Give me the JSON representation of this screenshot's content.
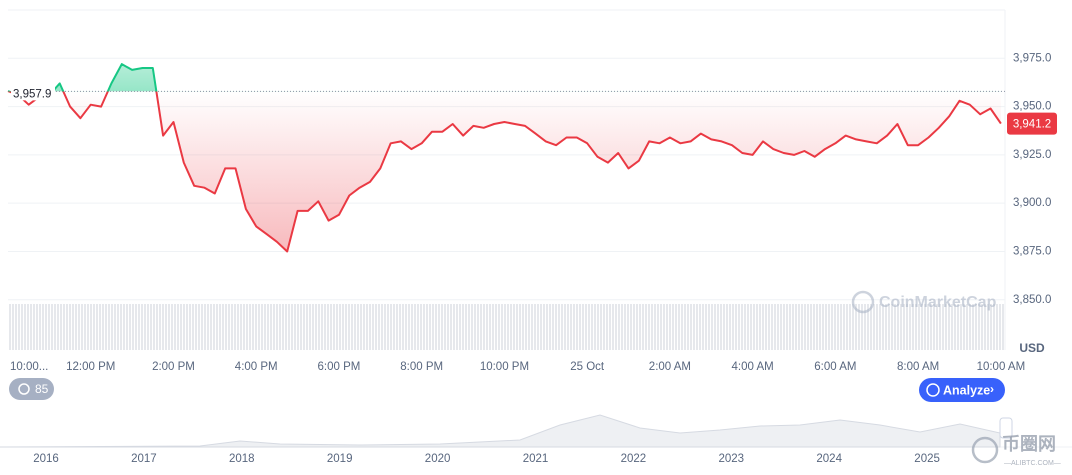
{
  "chart_data": {
    "type": "line",
    "x": [
      0,
      0.25,
      0.5,
      0.75,
      1,
      1.25,
      1.5,
      1.75,
      2,
      2.25,
      2.5,
      2.75,
      3,
      3.25,
      3.5,
      3.75,
      4,
      4.25,
      4.5,
      4.75,
      5,
      5.25,
      5.5,
      5.75,
      6,
      6.25,
      6.5,
      6.75,
      7,
      7.25,
      7.5,
      7.75,
      8,
      8.25,
      8.5,
      8.75,
      9,
      9.25,
      9.5,
      9.75,
      10,
      10.25,
      10.5,
      10.75,
      11,
      11.25,
      11.5,
      11.75,
      12,
      12.25,
      12.5,
      12.75,
      13,
      13.25,
      13.5,
      13.75,
      14,
      14.25,
      14.5,
      14.75,
      15,
      15.25,
      15.5,
      15.75,
      16,
      16.25,
      16.5,
      16.75,
      17,
      17.25,
      17.5,
      17.75,
      18,
      18.25,
      18.5,
      18.75,
      19,
      19.25,
      19.5,
      19.75,
      20,
      20.25,
      20.5,
      20.75,
      21,
      21.25,
      21.5,
      21.75,
      22,
      22.25,
      22.5,
      22.75,
      23,
      23.25,
      23.5,
      23.75,
      24
    ],
    "values": [
      3958,
      3956,
      3951,
      3955,
      3956,
      3962,
      3950,
      3944,
      3951,
      3950,
      3962,
      3972,
      3969,
      3970,
      3970,
      3935,
      3942,
      3921,
      3909,
      3908,
      3905,
      3918,
      3918,
      3897,
      3888,
      3884,
      3880,
      3875,
      3896,
      3896,
      3901,
      3891,
      3894,
      3904,
      3908,
      3911,
      3918,
      3931,
      3932,
      3928,
      3931,
      3937,
      3937,
      3941,
      3935,
      3940,
      3939,
      3941,
      3942,
      3941,
      3940,
      3936,
      3932,
      3930,
      3934,
      3934,
      3931,
      3924,
      3921,
      3926,
      3918,
      3922,
      3932,
      3931,
      3934,
      3931,
      3932,
      3936,
      3933,
      3932,
      3930,
      3926,
      3925,
      3932,
      3928,
      3926,
      3925,
      3927,
      3924,
      3928,
      3931,
      3935,
      3933,
      3932,
      3931,
      3935,
      3941,
      3930,
      3930,
      3934,
      3939,
      3945,
      3953,
      3951,
      3946,
      3949,
      3941.2
    ],
    "xlim": [
      0,
      24.1
    ],
    "xticks": [
      {
        "value": 0,
        "label": "10:00..."
      },
      {
        "value": 2,
        "label": "12:00 PM"
      },
      {
        "value": 4,
        "label": "2:00 PM"
      },
      {
        "value": 6,
        "label": "4:00 PM"
      },
      {
        "value": 8,
        "label": "6:00 PM"
      },
      {
        "value": 10,
        "label": "8:00 PM"
      },
      {
        "value": 12,
        "label": "10:00 PM"
      },
      {
        "value": 14,
        "label": "25 Oct"
      },
      {
        "value": 16,
        "label": "2:00 AM"
      },
      {
        "value": 18,
        "label": "4:00 AM"
      },
      {
        "value": 20,
        "label": "6:00 AM"
      },
      {
        "value": 22,
        "label": "8:00 AM"
      },
      {
        "value": 24,
        "label": "10:00 AM"
      }
    ],
    "ylim": [
      3824,
      4000
    ],
    "yticks": [
      {
        "value": 3850,
        "label": "3,850.0"
      },
      {
        "value": 3875,
        "label": "3,875.0"
      },
      {
        "value": 3900,
        "label": "3,900.0"
      },
      {
        "value": 3925,
        "label": "3,925.0"
      },
      {
        "value": 3950,
        "label": "3,950.0"
      },
      {
        "value": 3975,
        "label": "3,975.0"
      }
    ],
    "y_label": "USD",
    "grid": true,
    "up_color": "#16c784",
    "down_color": "#ea3943",
    "reference": {
      "value": 3957.9,
      "label": "3,957.9"
    },
    "current": {
      "value": 3941.2,
      "label": "3,941.2"
    },
    "watermark": "CoinMarketCap",
    "badge": "85",
    "button": "Analyze",
    "navigator": {
      "years": [
        "2016",
        "2017",
        "2018",
        "2019",
        "2020",
        "2021",
        "2022",
        "2023",
        "2024",
        "2025"
      ]
    },
    "site_watermark": {
      "name": "币圈网",
      "url": "—ALIBTC.COM—"
    }
  }
}
